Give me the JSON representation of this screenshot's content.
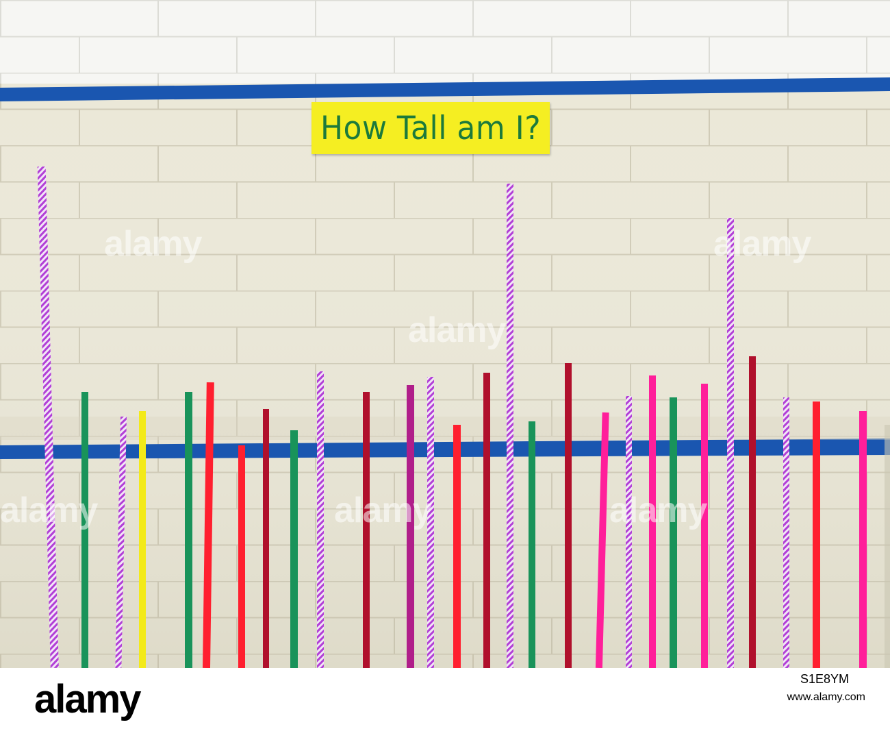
{
  "sign": {
    "text": "How Tall am I?"
  },
  "watermarks": [
    "alamy",
    "alamy",
    "alamy",
    "alamy",
    "alamy",
    "alamy"
  ],
  "footer": {
    "logo": "alamy",
    "stock_id": "S1E8YM",
    "credit": "www.alamy.com"
  },
  "colors": {
    "wall": "#ece9d8",
    "upper_wall": "#f6f6f4",
    "blue_stripe": "#1a56b0",
    "sign_bg": "#f5ee22",
    "sign_text": "#1c7a3b"
  }
}
